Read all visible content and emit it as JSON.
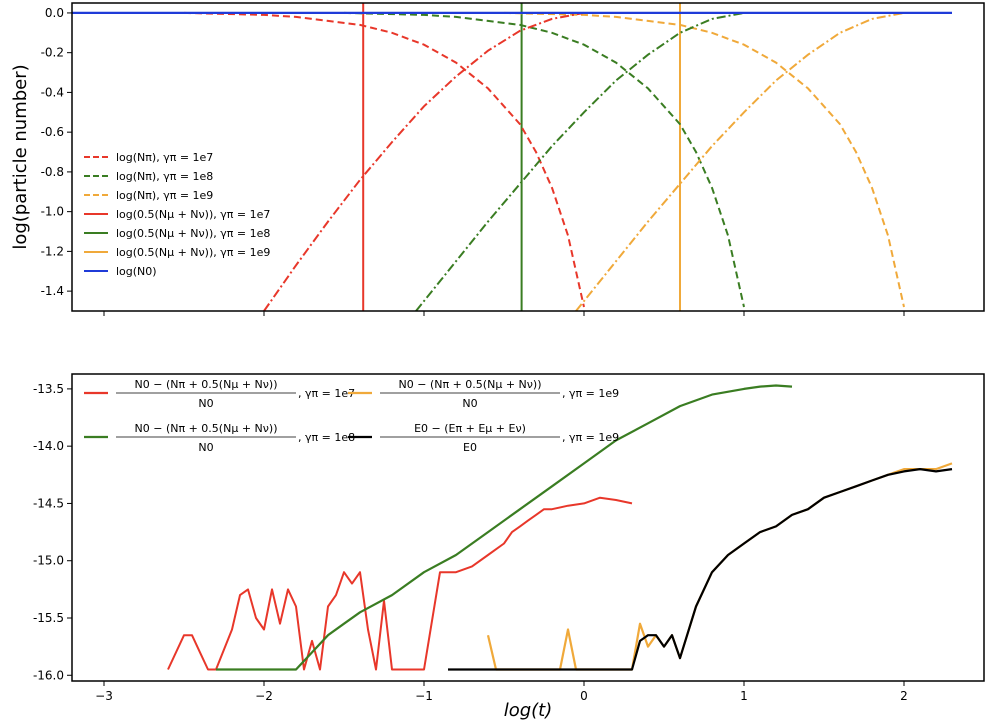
{
  "chart_data": [
    {
      "type": "line",
      "ylabel": "log(particle number)",
      "xlim": [
        -3.2,
        2.5
      ],
      "ylim": [
        -1.5,
        0.05
      ],
      "yticks": [
        "0.0",
        "-0.2",
        "-0.4",
        "-0.6",
        "-0.8",
        "-1.0",
        "-1.2",
        "-1.4"
      ],
      "ytick_values": [
        0.0,
        -0.2,
        -0.4,
        -0.6,
        -0.8,
        -1.0,
        -1.2,
        -1.4
      ],
      "legend_position": "left",
      "colors": {
        "red": "#e8372a",
        "green": "#3a7d22",
        "orange": "#f0a93a",
        "blue": "#1f3bd8"
      },
      "series": [
        {
          "name": "log(N_π), γ_π = 1e7",
          "label": "log(Nπ), γπ = 1e7",
          "style": "dashed",
          "color": "#e8372a",
          "x": [
            -2.5,
            -2.0,
            -1.8,
            -1.6,
            -1.4,
            -1.2,
            -1.0,
            -0.8,
            -0.6,
            -0.4,
            -0.3,
            -0.2,
            -0.1,
            0.0
          ],
          "y": [
            0.0,
            -0.01,
            -0.02,
            -0.04,
            -0.06,
            -0.1,
            -0.16,
            -0.25,
            -0.38,
            -0.56,
            -0.7,
            -0.88,
            -1.12,
            -1.48
          ]
        },
        {
          "name": "log(N_π), γ_π = 1e8",
          "label": "log(Nπ), γπ = 1e8",
          "style": "dashed",
          "color": "#3a7d22",
          "x": [
            -1.5,
            -1.0,
            -0.8,
            -0.6,
            -0.4,
            -0.2,
            0.0,
            0.2,
            0.4,
            0.6,
            0.7,
            0.8,
            0.9,
            1.0
          ],
          "y": [
            0.0,
            -0.01,
            -0.02,
            -0.04,
            -0.06,
            -0.1,
            -0.16,
            -0.25,
            -0.38,
            -0.56,
            -0.7,
            -0.88,
            -1.12,
            -1.48
          ]
        },
        {
          "name": "log(N_π), γ_π = 1e9",
          "label": "log(Nπ), γπ = 1e9",
          "style": "dashed",
          "color": "#f0a93a",
          "x": [
            -0.5,
            0.0,
            0.2,
            0.4,
            0.6,
            0.8,
            1.0,
            1.2,
            1.4,
            1.6,
            1.7,
            1.8,
            1.9,
            2.0
          ],
          "y": [
            0.0,
            -0.01,
            -0.02,
            -0.04,
            -0.06,
            -0.1,
            -0.16,
            -0.25,
            -0.38,
            -0.56,
            -0.7,
            -0.88,
            -1.12,
            -1.48
          ]
        },
        {
          "name": "log(0.5(N_μ + N_ν)), γ_π = 1e7",
          "label": "log(0.5(Nμ + Nν)), γπ = 1e7",
          "style": "dashdot",
          "color": "#e8372a",
          "x": [
            -2.0,
            -1.8,
            -1.6,
            -1.4,
            -1.2,
            -1.0,
            -0.8,
            -0.6,
            -0.4,
            -0.2,
            0.0
          ],
          "y": [
            -1.5,
            -1.27,
            -1.05,
            -0.84,
            -0.65,
            -0.47,
            -0.32,
            -0.19,
            -0.09,
            -0.03,
            0.0
          ]
        },
        {
          "name": "log(0.5(N_μ + N_ν)), γ_π = 1e8",
          "label": "log(0.5(Nμ + Nν)), γπ = 1e8",
          "style": "dashdot",
          "color": "#3a7d22",
          "x": [
            -1.05,
            -0.8,
            -0.6,
            -0.4,
            -0.2,
            0.0,
            0.2,
            0.4,
            0.6,
            0.8,
            1.0
          ],
          "y": [
            -1.5,
            -1.25,
            -1.05,
            -0.86,
            -0.67,
            -0.5,
            -0.34,
            -0.21,
            -0.1,
            -0.03,
            0.0
          ]
        },
        {
          "name": "log(0.5(N_μ + N_ν)), γ_π = 1e9",
          "label": "log(0.5(Nμ + Nν)), γπ = 1e9",
          "style": "dashdot",
          "color": "#f0a93a",
          "x": [
            -0.05,
            0.2,
            0.4,
            0.6,
            0.8,
            1.0,
            1.2,
            1.4,
            1.6,
            1.8,
            2.0
          ],
          "y": [
            -1.5,
            -1.25,
            -1.05,
            -0.86,
            -0.67,
            -0.5,
            -0.34,
            -0.21,
            -0.1,
            -0.03,
            0.0
          ]
        },
        {
          "name": "log(N_0)",
          "label": "log(N0)",
          "style": "solid",
          "color": "#1f3bd8",
          "x": [
            -3.2,
            2.3
          ],
          "y": [
            0.0,
            0.0
          ]
        }
      ],
      "vlines": [
        {
          "x": -1.38,
          "color": "#e8372a"
        },
        {
          "x": -0.39,
          "color": "#3a7d22"
        },
        {
          "x": 0.6,
          "color": "#f0a93a"
        }
      ]
    },
    {
      "type": "line",
      "xlabel": "log(t)",
      "xlim": [
        -3.2,
        2.5
      ],
      "ylim": [
        -16.05,
        -13.37
      ],
      "xticks": [
        "−3",
        "−2",
        "−1",
        "0",
        "1",
        "2"
      ],
      "xtick_values": [
        -3,
        -2,
        -1,
        0,
        1,
        2
      ],
      "yticks": [
        "-13.5",
        "-14.0",
        "-14.5",
        "-15.0",
        "-15.5",
        "-16.0"
      ],
      "ytick_values": [
        -13.5,
        -14.0,
        -14.5,
        -15.0,
        -15.5,
        -16.0
      ],
      "legend_position": "top-left",
      "series": [
        {
          "name": "(N0 − (Nπ + 0.5(Nμ + Nν)))/N0, γπ = 1e7",
          "color": "#e8372a",
          "legend": {
            "num": "N0 − (Nπ + 0.5(Nμ + Nν))",
            "den": "N0",
            "suffix": ", γπ = 1e7"
          },
          "x": [
            -2.6,
            -2.5,
            -2.45,
            -2.4,
            -2.35,
            -2.3,
            -2.2,
            -2.15,
            -2.1,
            -2.05,
            -2.0,
            -1.95,
            -1.9,
            -1.85,
            -1.8,
            -1.75,
            -1.7,
            -1.65,
            -1.6,
            -1.55,
            -1.5,
            -1.45,
            -1.4,
            -1.35,
            -1.3,
            -1.25,
            -1.2,
            -1.15,
            -1.1,
            -1.05,
            -1.0,
            -0.9,
            -0.8,
            -0.7,
            -0.6,
            -0.5,
            -0.45,
            -0.4,
            -0.35,
            -0.3,
            -0.25,
            -0.2,
            -0.1,
            0.0,
            0.1,
            0.2,
            0.3
          ],
          "y": [
            -15.95,
            -15.65,
            -15.65,
            -15.8,
            -15.95,
            -15.95,
            -15.6,
            -15.3,
            -15.25,
            -15.5,
            -15.6,
            -15.25,
            -15.55,
            -15.25,
            -15.4,
            -15.95,
            -15.7,
            -15.95,
            -15.4,
            -15.3,
            -15.1,
            -15.2,
            -15.1,
            -15.6,
            -15.95,
            -15.35,
            -15.95,
            -15.95,
            -15.95,
            -15.95,
            -15.95,
            -15.1,
            -15.1,
            -15.05,
            -14.95,
            -14.85,
            -14.75,
            -14.7,
            -14.65,
            -14.6,
            -14.55,
            -14.55,
            -14.52,
            -14.5,
            -14.45,
            -14.47,
            -14.5
          ]
        },
        {
          "name": "(N0 − (Nπ + 0.5(Nμ + Nν)))/N0, γπ = 1e8",
          "color": "#3a7d22",
          "legend": {
            "num": "N0 − (Nπ + 0.5(Nμ + Nν))",
            "den": "N0",
            "suffix": ", γπ = 1e8"
          },
          "x": [
            -2.3,
            -1.8,
            -1.7,
            -1.6,
            -1.5,
            -1.4,
            -1.2,
            -1.0,
            -0.8,
            -0.6,
            -0.4,
            -0.2,
            0.0,
            0.2,
            0.4,
            0.6,
            0.8,
            1.0,
            1.1,
            1.2,
            1.3
          ],
          "y": [
            -15.95,
            -15.95,
            -15.8,
            -15.65,
            -15.55,
            -15.45,
            -15.3,
            -15.1,
            -14.95,
            -14.75,
            -14.55,
            -14.35,
            -14.15,
            -13.95,
            -13.8,
            -13.65,
            -13.55,
            -13.5,
            -13.48,
            -13.47,
            -13.48
          ]
        },
        {
          "name": "(N0 − (Nπ + 0.5(Nμ + Nν)))/N0, γπ = 1e9",
          "color": "#f0a93a",
          "legend": {
            "num": "N0 − (Nπ + 0.5(Nμ + Nν))",
            "den": "N0",
            "suffix": ", γπ = 1e9"
          },
          "x": [
            -0.6,
            -0.55,
            -0.15,
            -0.1,
            -0.05,
            0.0,
            0.3,
            0.35,
            0.4,
            0.45,
            0.5,
            0.55,
            0.6,
            0.7,
            0.8,
            0.9,
            1.0,
            1.1,
            1.2,
            1.3,
            1.4,
            1.5,
            1.6,
            1.7,
            1.8,
            1.9,
            2.0,
            2.1,
            2.2,
            2.3
          ],
          "y": [
            -15.65,
            -15.95,
            -15.95,
            -15.6,
            -15.95,
            -15.95,
            -15.95,
            -15.55,
            -15.75,
            -15.65,
            -15.75,
            -15.65,
            -15.85,
            -15.4,
            -15.1,
            -14.95,
            -14.85,
            -14.75,
            -14.7,
            -14.6,
            -14.55,
            -14.45,
            -14.4,
            -14.35,
            -14.3,
            -14.25,
            -14.2,
            -14.2,
            -14.2,
            -14.15
          ]
        },
        {
          "name": "(E0 − (Eπ + Eμ + Eν))/E0, γπ = 1e9",
          "color": "#000000",
          "legend": {
            "num": "E0 − (Eπ + Eμ + Eν)",
            "den": "E0",
            "suffix": ", γπ = 1e9"
          },
          "x": [
            -0.85,
            -0.6,
            -0.5,
            -0.3,
            -0.2,
            0.3,
            0.35,
            0.4,
            0.45,
            0.5,
            0.55,
            0.6,
            0.7,
            0.8,
            0.9,
            1.0,
            1.1,
            1.2,
            1.3,
            1.4,
            1.5,
            1.6,
            1.7,
            1.8,
            1.9,
            2.0,
            2.1,
            2.2,
            2.3
          ],
          "y": [
            -15.95,
            -15.95,
            -15.95,
            -15.95,
            -15.95,
            -15.95,
            -15.7,
            -15.65,
            -15.65,
            -15.75,
            -15.65,
            -15.85,
            -15.4,
            -15.1,
            -14.95,
            -14.85,
            -14.75,
            -14.7,
            -14.6,
            -14.55,
            -14.45,
            -14.4,
            -14.35,
            -14.3,
            -14.25,
            -14.22,
            -14.2,
            -14.22,
            -14.2
          ]
        }
      ]
    }
  ]
}
